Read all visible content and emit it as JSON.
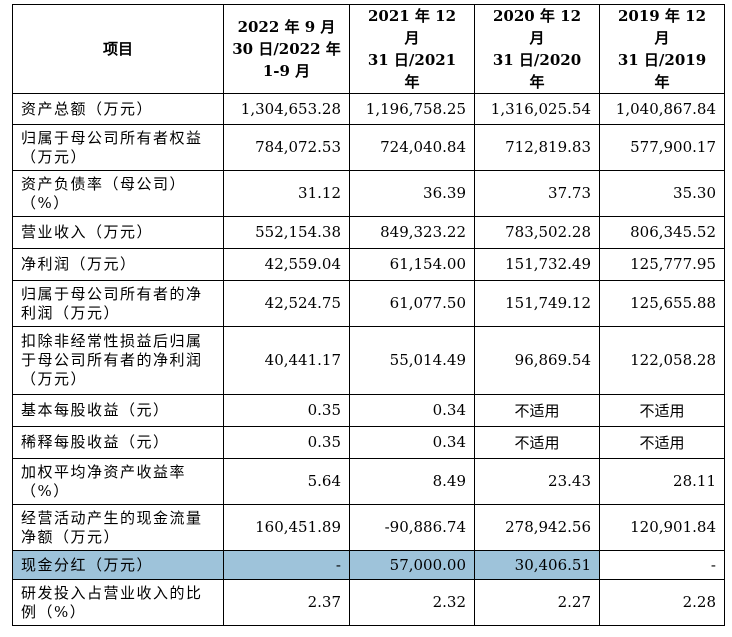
{
  "table": {
    "headers": [
      "项目",
      "2022 年 9 月 30 日/2022 年 1-9 月",
      "2021 年 12 月 31 日/2021 年",
      "2020 年 12 月 31 日/2020 年",
      "2019 年 12 月 31 日/2019 年"
    ],
    "header_lines": [
      [
        "项目"
      ],
      [
        "2022 年 9 月",
        "30 日/2022 年",
        "1-9 月"
      ],
      [
        "2021 年 12 月",
        "31 日/2021 年"
      ],
      [
        "2020 年 12 月",
        "31 日/2020 年"
      ],
      [
        "2019 年 12 月",
        "31 日/2019 年"
      ]
    ],
    "rows": [
      {
        "label": "资产总额（万元）",
        "values": [
          "1,304,653.28",
          "1,196,758.25",
          "1,316,025.54",
          "1,040,867.84"
        ]
      },
      {
        "label": "归属于母公司所有者权益（万元）",
        "values": [
          "784,072.53",
          "724,040.84",
          "712,819.83",
          "577,900.17"
        ]
      },
      {
        "label": "资产负债率（母公司）（%）",
        "values": [
          "31.12",
          "36.39",
          "37.73",
          "35.30"
        ]
      },
      {
        "label": "营业收入（万元）",
        "values": [
          "552,154.38",
          "849,323.22",
          "783,502.28",
          "806,345.52"
        ]
      },
      {
        "label": "净利润（万元）",
        "values": [
          "42,559.04",
          "61,154.00",
          "151,732.49",
          "125,777.95"
        ]
      },
      {
        "label": "归属于母公司所有者的净利润（万元）",
        "values": [
          "42,524.75",
          "61,077.50",
          "151,749.12",
          "125,655.88"
        ]
      },
      {
        "label": "扣除非经常性损益后归属于母公司所有者的净利润（万元）",
        "values": [
          "40,441.17",
          "55,014.49",
          "96,869.54",
          "122,058.28"
        ]
      },
      {
        "label": "基本每股收益（元）",
        "values": [
          "0.35",
          "0.34",
          "不适用",
          "不适用"
        ]
      },
      {
        "label": "稀释每股收益（元）",
        "values": [
          "0.35",
          "0.34",
          "不适用",
          "不适用"
        ]
      },
      {
        "label": "加权平均净资产收益率（%）",
        "values": [
          "5.64",
          "8.49",
          "23.43",
          "28.11"
        ]
      },
      {
        "label": "经营活动产生的现金流量净额（万元）",
        "values": [
          "160,451.89",
          "-90,886.74",
          "278,942.56",
          "120,901.84"
        ]
      },
      {
        "label": "现金分红（万元）",
        "values": [
          "-",
          "57,000.00",
          "30,406.51",
          "-"
        ],
        "highlighted": true
      },
      {
        "label": "研发投入占营业收入的比例（%）",
        "values": [
          "2.37",
          "2.32",
          "2.27",
          "2.28"
        ]
      }
    ]
  },
  "colors": {
    "highlight": "#9ec3da",
    "border": "#000000"
  }
}
